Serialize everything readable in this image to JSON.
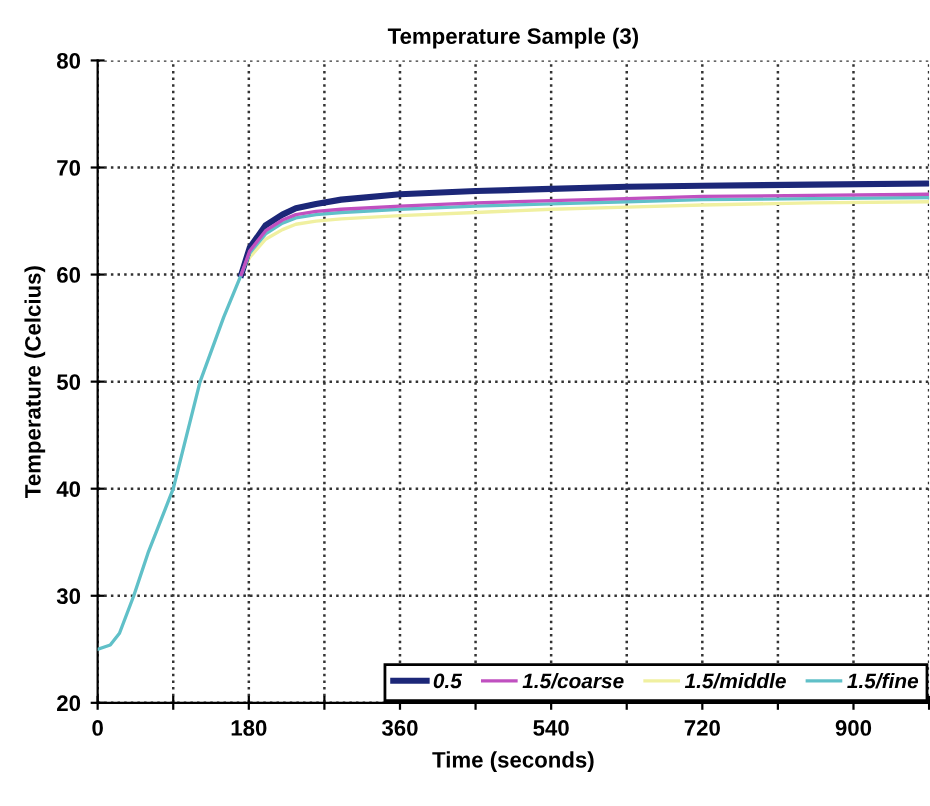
{
  "chart_data": {
    "type": "line",
    "title": "Temperature Sample (3)",
    "xlabel": "Time (seconds)",
    "ylabel": "Temperature (Celcius)",
    "xlim": [
      0,
      990
    ],
    "xticks": [
      0,
      {
        "value": 90,
        "label": null
      },
      180,
      {
        "value": 270,
        "label": null
      },
      360,
      {
        "value": 450,
        "label": null
      },
      540,
      {
        "value": 630,
        "label": null
      },
      720,
      {
        "value": 810,
        "label": null
      },
      900,
      {
        "value": 990,
        "label": null
      }
    ],
    "ylim": [
      20,
      80
    ],
    "yticks": [
      20,
      30,
      40,
      50,
      60,
      70,
      80
    ],
    "grid": true,
    "legend": "bottom right",
    "line_style": "solid",
    "marker": "none",
    "series": [
      {
        "name": "0.5",
        "color": "#1c2778",
        "x": [
          171,
          181,
          200,
          220,
          236,
          260,
          290,
          360,
          450,
          540,
          630,
          720,
          850,
          990
        ],
        "values": [
          60,
          62.5,
          64.6,
          65.6,
          66.2,
          66.6,
          67,
          67.5,
          67.8,
          68,
          68.2,
          68.3,
          68.4,
          68.5
        ]
      },
      {
        "name": "1.5/coarse",
        "color": "#c050c0",
        "x": [
          171,
          181,
          200,
          220,
          236,
          260,
          290,
          360,
          450,
          540,
          630,
          720,
          850,
          990
        ],
        "values": [
          60,
          62.2,
          64.1,
          65.1,
          65.6,
          65.9,
          66.1,
          66.4,
          66.7,
          66.9,
          67.1,
          67.3,
          67.4,
          67.5
        ]
      },
      {
        "name": "1.5/middle",
        "color": "#f0f0a0",
        "x": [
          171,
          181,
          200,
          220,
          236,
          260,
          290,
          360,
          450,
          540,
          630,
          720,
          850,
          990
        ],
        "values": [
          60,
          61.6,
          63.3,
          64.2,
          64.7,
          65,
          65.2,
          65.5,
          65.8,
          66.1,
          66.3,
          66.5,
          66.7,
          66.8
        ]
      },
      {
        "name": "1.5/fine",
        "color": "#60c0c8",
        "x": [
          0,
          15,
          26,
          43,
          60,
          90,
          122,
          150,
          171,
          181,
          200,
          220,
          236,
          260,
          290,
          360,
          450,
          540,
          630,
          720,
          850,
          990
        ],
        "values": [
          25,
          25.4,
          26.5,
          30,
          34,
          40,
          50,
          56,
          60,
          62,
          63.8,
          64.8,
          65.3,
          65.6,
          65.8,
          66.1,
          66.4,
          66.6,
          66.8,
          67,
          67.1,
          67.2
        ]
      }
    ]
  }
}
